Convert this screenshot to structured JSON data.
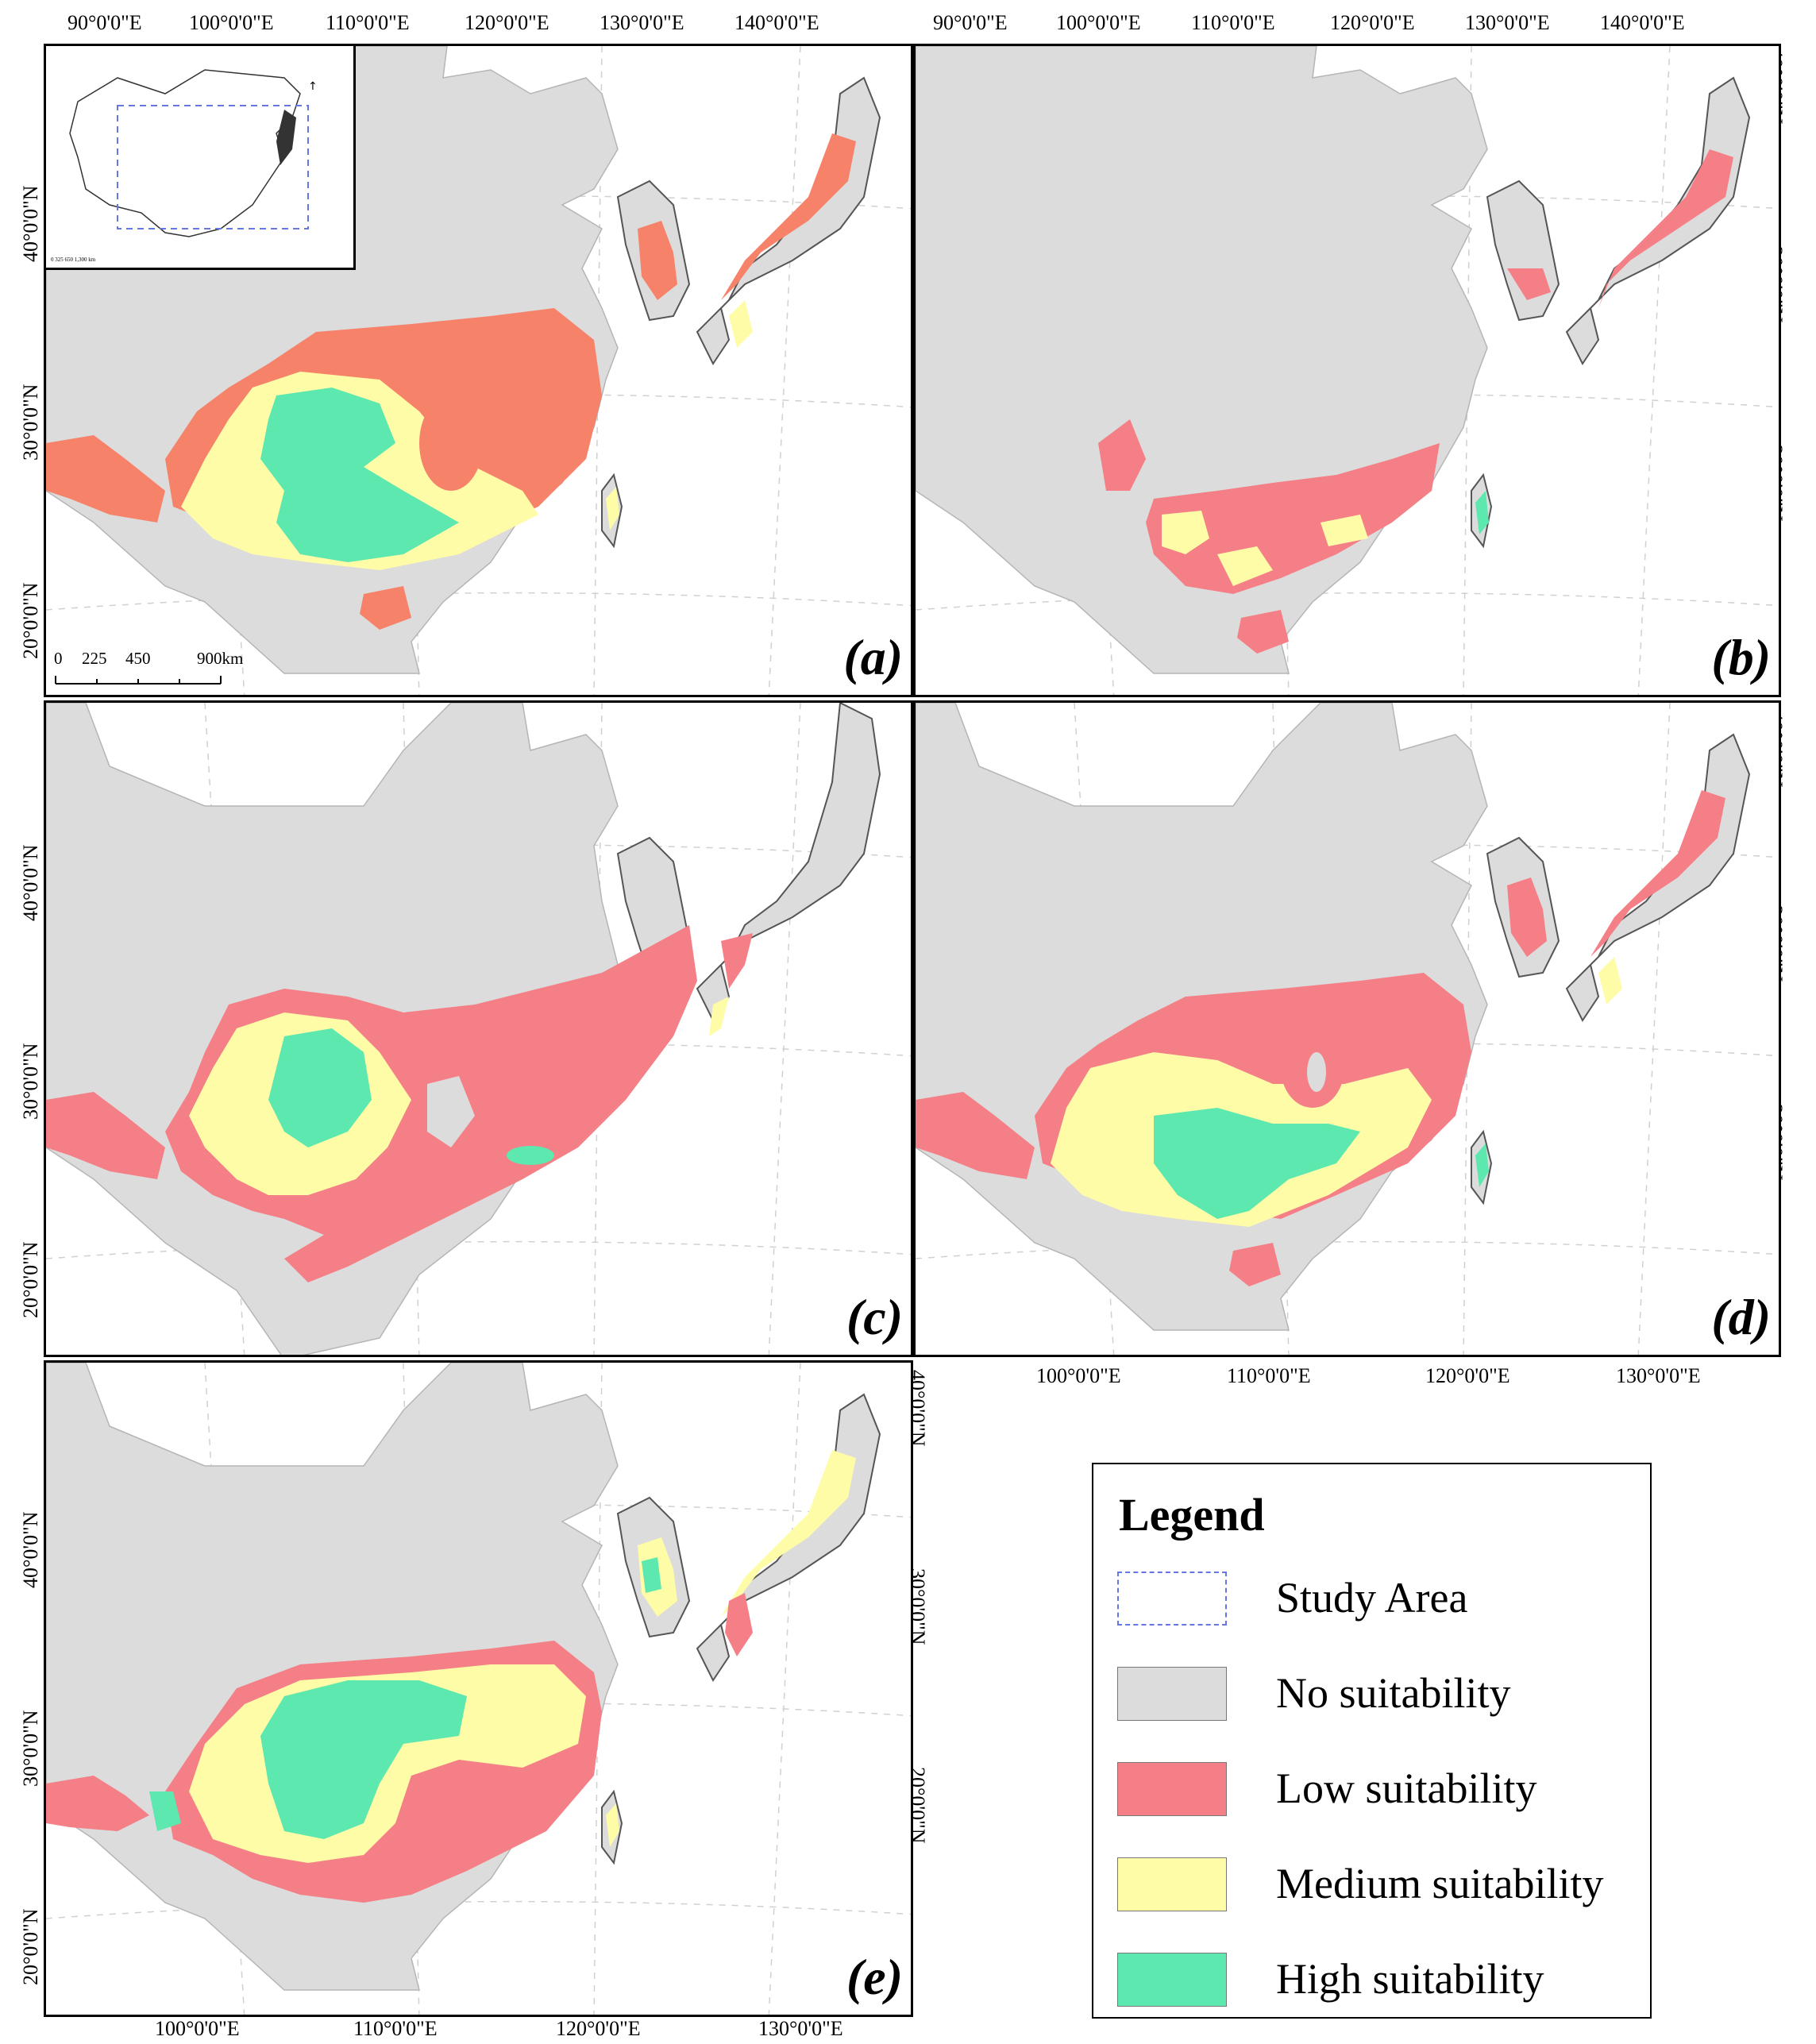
{
  "colors": {
    "no_suitability": "#dcdcdc",
    "low_suitability": "#f57f86",
    "medium_suitability": "#fffca8",
    "high_suitability": "#5de8b0",
    "study_area_border": "#6676e0",
    "panel_a_low": "#f7826a"
  },
  "panels": [
    {
      "label": "(a)"
    },
    {
      "label": "(b)"
    },
    {
      "label": "(c)"
    },
    {
      "label": "(d)"
    },
    {
      "label": "(e)"
    }
  ],
  "axes": {
    "top_lon_labels": [
      "90°0'0\"E",
      "100°0'0\"E",
      "110°0'0\"E",
      "120°0'0\"E",
      "130°0'0\"E",
      "140°0'0\"E"
    ],
    "bottom_lon_labels": [
      "100°0'0\"E",
      "110°0'0\"E",
      "120°0'0\"E",
      "130°0'0\"E"
    ],
    "lat_labels": [
      "40°0'0\"N",
      "30°0'0\"N",
      "20°0'0\"N"
    ]
  },
  "scale_bar": {
    "ticks": [
      "0",
      "225",
      "450",
      "900km"
    ]
  },
  "inset": {
    "scale_text": "0   325  650      1,300 km"
  },
  "legend": {
    "title": "Legend",
    "items": [
      {
        "label": "Study Area",
        "key": "study_area"
      },
      {
        "label": "No suitability",
        "key": "no"
      },
      {
        "label": "Low suitability",
        "key": "low"
      },
      {
        "label": "Medium suitability",
        "key": "medium"
      },
      {
        "label": "High suitability",
        "key": "high"
      }
    ]
  }
}
